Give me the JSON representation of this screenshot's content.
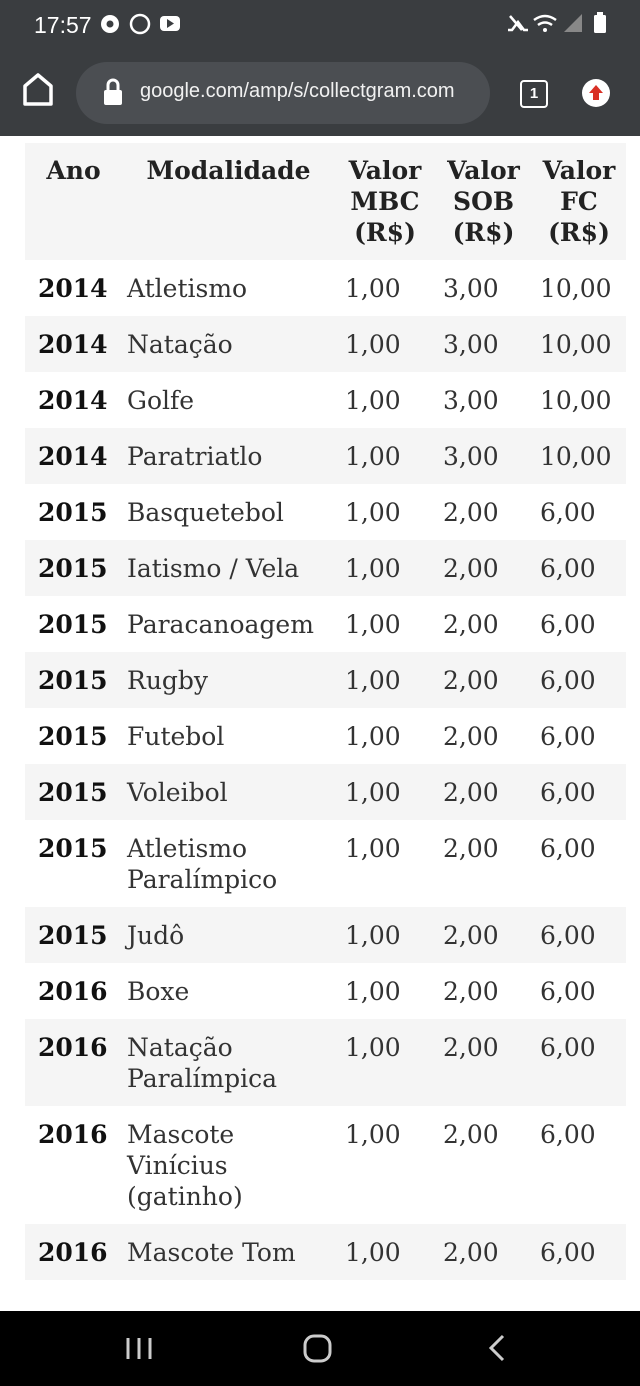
{
  "status_bar": {
    "time": "17:57"
  },
  "browser": {
    "url": "google.com/amp/s/collectgram.com",
    "tab_count": "1"
  },
  "table": {
    "header": [
      [
        "Ano"
      ],
      [
        "Modalidade"
      ],
      [
        "Valor",
        "MBC",
        "(R$)"
      ],
      [
        "Valor",
        "SOB",
        "(R$)"
      ],
      [
        "Valor",
        "FC",
        "(R$)"
      ]
    ],
    "rows": [
      [
        "2014",
        "Atletismo",
        "1,00",
        "3,00",
        "10,00"
      ],
      [
        "2014",
        "Natação",
        "1,00",
        "3,00",
        "10,00"
      ],
      [
        "2014",
        "Golfe",
        "1,00",
        "3,00",
        "10,00"
      ],
      [
        "2014",
        "Paratriatlo",
        "1,00",
        "3,00",
        "10,00"
      ],
      [
        "2015",
        "Basquetebol",
        "1,00",
        "2,00",
        "6,00"
      ],
      [
        "2015",
        "Iatismo / Vela",
        "1,00",
        "2,00",
        "6,00"
      ],
      [
        "2015",
        "Paracanoagem",
        "1,00",
        "2,00",
        "6,00"
      ],
      [
        "2015",
        "Rugby",
        "1,00",
        "2,00",
        "6,00"
      ],
      [
        "2015",
        "Futebol",
        "1,00",
        "2,00",
        "6,00"
      ],
      [
        "2015",
        "Voleibol",
        "1,00",
        "2,00",
        "6,00"
      ],
      [
        "2015",
        "Atletismo Paralímpico",
        "1,00",
        "2,00",
        "6,00"
      ],
      [
        "2015",
        "Judô",
        "1,00",
        "2,00",
        "6,00"
      ],
      [
        "2016",
        "Boxe",
        "1,00",
        "2,00",
        "6,00"
      ],
      [
        "2016",
        "Natação Paralímpica",
        "1,00",
        "2,00",
        "6,00"
      ],
      [
        "2016",
        "Mascote Vinícius (gatinho)",
        "1,00",
        "2,00",
        "6,00"
      ],
      [
        "2016",
        "Mascote Tom",
        "1,00",
        "2,00",
        "6,00"
      ]
    ]
  }
}
